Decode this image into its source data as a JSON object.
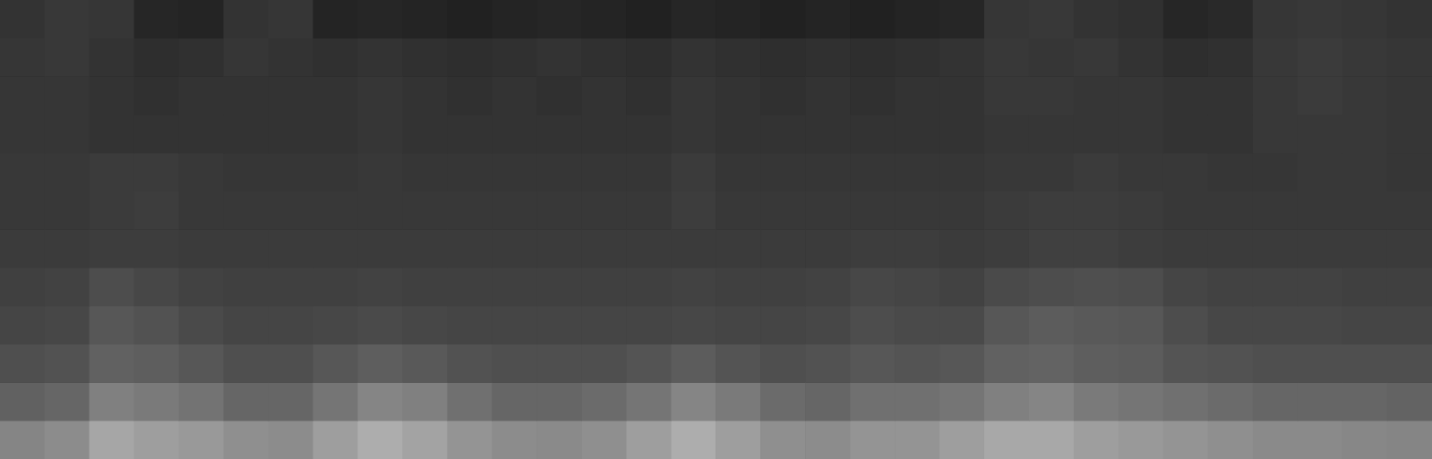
{
  "chart_data": {
    "type": "heatmap",
    "tick_labels": false,
    "grid": false,
    "ylim": [
      0,
      12
    ],
    "zlim": [
      0,
      100
    ],
    "cells": [
      [
        20,
        22,
        21,
        15,
        14,
        20,
        21,
        14,
        15,
        14,
        13,
        14,
        15,
        14,
        13,
        15,
        14,
        13,
        14,
        13,
        14,
        15,
        21,
        22,
        20,
        19,
        15,
        16,
        21,
        22,
        21,
        20
      ],
      [
        21,
        22,
        20,
        18,
        19,
        21,
        20,
        19,
        20,
        19,
        18,
        19,
        20,
        19,
        18,
        20,
        19,
        18,
        19,
        18,
        19,
        20,
        22,
        21,
        22,
        20,
        18,
        19,
        22,
        23,
        22,
        21
      ],
      [
        21,
        21,
        20,
        19,
        20,
        20,
        20,
        20,
        21,
        20,
        19,
        20,
        19,
        20,
        19,
        21,
        20,
        19,
        20,
        19,
        20,
        20,
        22,
        22,
        21,
        21,
        20,
        20,
        22,
        23,
        22,
        21
      ],
      [
        21,
        21,
        20,
        20,
        20,
        20,
        20,
        20,
        21,
        20,
        20,
        20,
        20,
        20,
        20,
        21,
        20,
        20,
        20,
        20,
        20,
        20,
        21,
        21,
        21,
        21,
        20,
        20,
        22,
        22,
        22,
        21
      ],
      [
        22,
        22,
        23,
        23,
        22,
        21,
        21,
        21,
        22,
        21,
        21,
        21,
        21,
        21,
        21,
        23,
        21,
        21,
        21,
        21,
        21,
        21,
        22,
        22,
        23,
        22,
        22,
        21,
        21,
        22,
        22,
        21
      ],
      [
        22,
        22,
        23,
        24,
        22,
        22,
        22,
        22,
        22,
        22,
        22,
        22,
        22,
        22,
        22,
        24,
        22,
        22,
        22,
        22,
        22,
        22,
        23,
        24,
        24,
        23,
        22,
        22,
        22,
        22,
        22,
        22
      ],
      [
        23,
        23,
        24,
        24,
        23,
        23,
        23,
        23,
        23,
        23,
        23,
        23,
        23,
        23,
        23,
        23,
        23,
        23,
        23,
        24,
        24,
        23,
        24,
        25,
        25,
        24,
        23,
        23,
        23,
        23,
        23,
        23
      ],
      [
        25,
        26,
        30,
        28,
        26,
        25,
        25,
        25,
        26,
        25,
        25,
        25,
        25,
        25,
        25,
        26,
        25,
        25,
        26,
        28,
        27,
        26,
        29,
        30,
        31,
        30,
        27,
        26,
        26,
        26,
        25,
        25
      ],
      [
        27,
        28,
        34,
        32,
        29,
        27,
        27,
        28,
        29,
        28,
        27,
        27,
        27,
        27,
        27,
        28,
        27,
        27,
        28,
        30,
        29,
        29,
        34,
        36,
        35,
        34,
        30,
        28,
        28,
        28,
        27,
        27
      ],
      [
        31,
        32,
        38,
        37,
        34,
        31,
        31,
        34,
        37,
        35,
        32,
        31,
        31,
        31,
        33,
        36,
        33,
        31,
        32,
        34,
        33,
        34,
        38,
        39,
        37,
        36,
        33,
        32,
        31,
        31,
        31,
        31
      ],
      [
        38,
        40,
        50,
        48,
        45,
        40,
        40,
        46,
        52,
        50,
        44,
        40,
        40,
        42,
        46,
        52,
        48,
        42,
        40,
        44,
        44,
        46,
        50,
        52,
        48,
        46,
        44,
        42,
        40,
        40,
        40,
        39
      ],
      [
        52,
        55,
        65,
        62,
        60,
        56,
        55,
        62,
        68,
        64,
        58,
        55,
        54,
        56,
        62,
        68,
        62,
        56,
        55,
        58,
        58,
        62,
        66,
        66,
        62,
        60,
        58,
        56,
        54,
        54,
        53,
        52
      ]
    ]
  }
}
